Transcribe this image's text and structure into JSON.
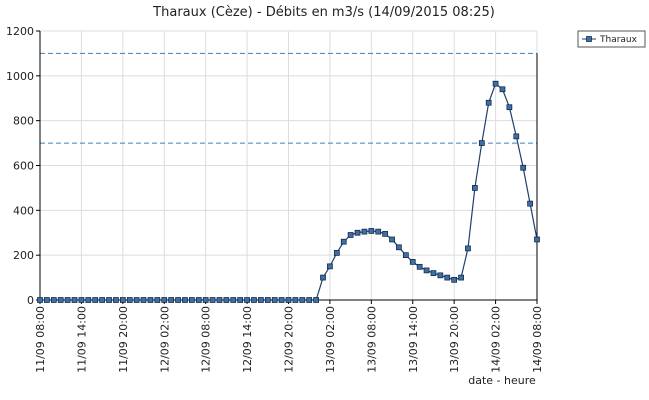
{
  "chart_data": {
    "type": "line",
    "title": "Tharaux (Cèze) - Débits en m3/s (14/09/2015 08:25)",
    "x_label": "date - heure",
    "x": [
      "11/09 08:00",
      "11/09 09:00",
      "11/09 10:00",
      "11/09 11:00",
      "11/09 12:00",
      "11/09 13:00",
      "11/09 14:00",
      "11/09 15:00",
      "11/09 16:00",
      "11/09 17:00",
      "11/09 18:00",
      "11/09 19:00",
      "11/09 20:00",
      "11/09 21:00",
      "11/09 22:00",
      "11/09 23:00",
      "12/09 00:00",
      "12/09 01:00",
      "12/09 02:00",
      "12/09 03:00",
      "12/09 04:00",
      "12/09 05:00",
      "12/09 06:00",
      "12/09 07:00",
      "12/09 08:00",
      "12/09 09:00",
      "12/09 10:00",
      "12/09 11:00",
      "12/09 12:00",
      "12/09 13:00",
      "12/09 14:00",
      "12/09 15:00",
      "12/09 16:00",
      "12/09 17:00",
      "12/09 18:00",
      "12/09 19:00",
      "12/09 20:00",
      "12/09 21:00",
      "12/09 22:00",
      "12/09 23:00",
      "13/09 00:00",
      "13/09 01:00",
      "13/09 02:00",
      "13/09 03:00",
      "13/09 04:00",
      "13/09 05:00",
      "13/09 06:00",
      "13/09 07:00",
      "13/09 08:00",
      "13/09 09:00",
      "13/09 10:00",
      "13/09 11:00",
      "13/09 12:00",
      "13/09 13:00",
      "13/09 14:00",
      "13/09 15:00",
      "13/09 16:00",
      "13/09 17:00",
      "13/09 18:00",
      "13/09 19:00",
      "13/09 20:00",
      "13/09 21:00",
      "13/09 22:00",
      "13/09 23:00",
      "14/09 00:00",
      "14/09 01:00",
      "14/09 02:00",
      "14/09 03:00",
      "14/09 04:00",
      "14/09 05:00",
      "14/09 06:00",
      "14/09 07:00",
      "14/09 08:00"
    ],
    "series": [
      {
        "name": "Tharaux",
        "color": "#1f3f6e",
        "marker_color": "#3b6fa8",
        "values": [
          0,
          0,
          0,
          0,
          0,
          0,
          0,
          0,
          0,
          0,
          0,
          0,
          0,
          0,
          0,
          0,
          0,
          0,
          0,
          0,
          0,
          0,
          0,
          0,
          0,
          0,
          0,
          0,
          0,
          0,
          0,
          0,
          0,
          0,
          0,
          0,
          0,
          0,
          0,
          0,
          0,
          100,
          150,
          210,
          260,
          290,
          300,
          305,
          308,
          305,
          295,
          270,
          235,
          200,
          170,
          148,
          132,
          120,
          110,
          100,
          90,
          100,
          230,
          500,
          700,
          880,
          965,
          940,
          860,
          730,
          590,
          430,
          270
        ]
      }
    ],
    "xlim": [
      "11/09 08:00",
      "14/09 08:00"
    ],
    "xticks": [
      "11/09 08:00",
      "11/09 14:00",
      "11/09 20:00",
      "12/09 02:00",
      "12/09 08:00",
      "12/09 14:00",
      "12/09 20:00",
      "13/09 02:00",
      "13/09 08:00",
      "13/09 14:00",
      "13/09 20:00",
      "14/09 02:00",
      "14/09 08:00"
    ],
    "ylim": [
      0,
      1200
    ],
    "yticks": [
      0,
      200,
      400,
      600,
      800,
      1000,
      1200
    ],
    "hlines": [
      1100,
      700
    ],
    "hline_color": "#3d7fc0",
    "grid": true,
    "legend": "top-right"
  }
}
